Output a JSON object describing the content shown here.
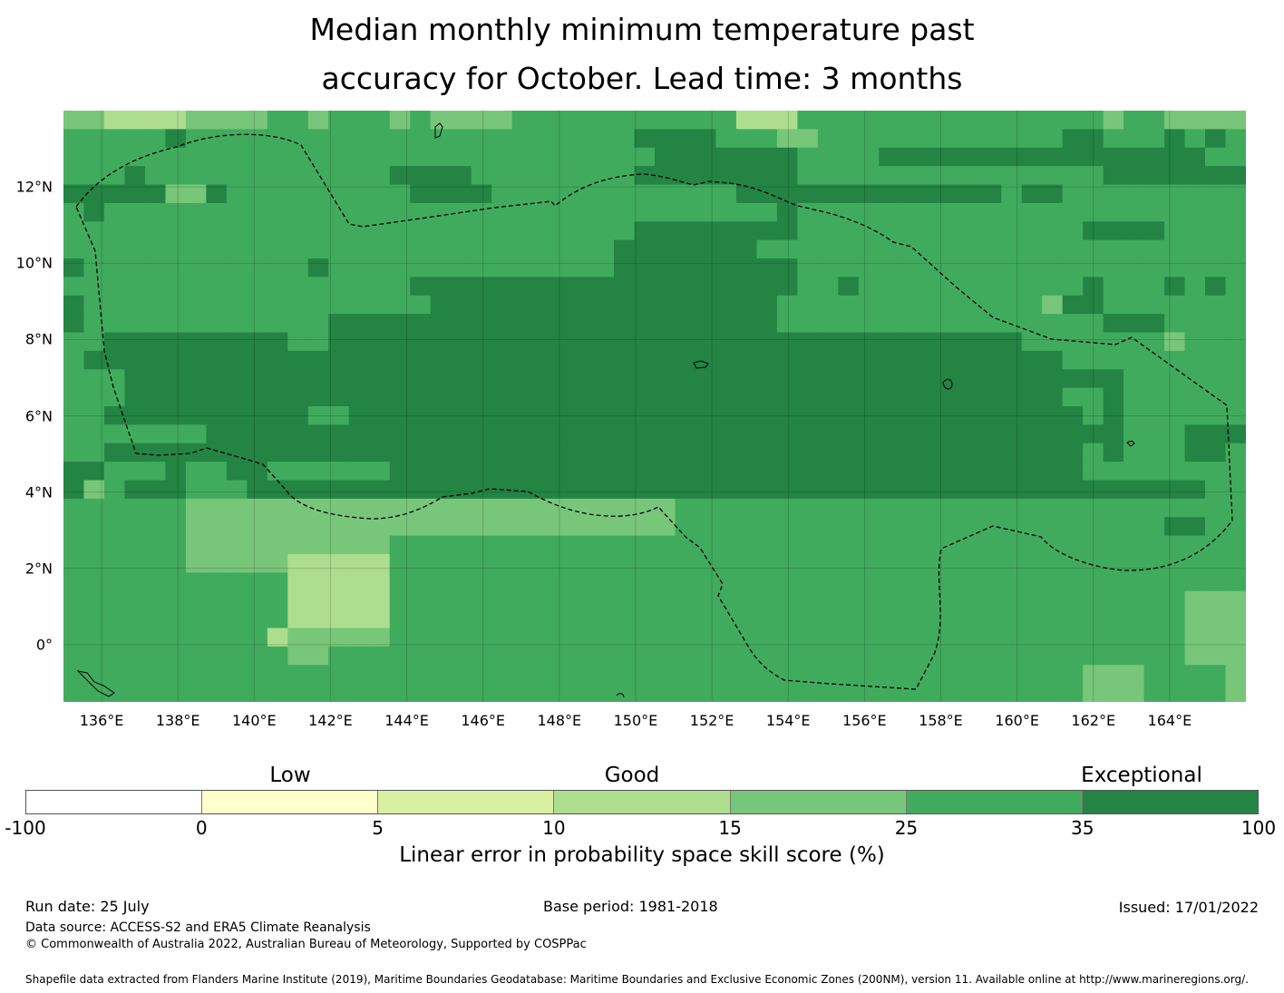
{
  "title_line1": "Median monthly minimum temperature past",
  "title_line2": "accuracy for October. Lead time: 3 months",
  "map": {
    "lon_range": [
      135.0,
      166.0
    ],
    "lat_range": [
      -1.5,
      14.0
    ],
    "lat_labels": [
      "12°N",
      "10°N",
      "8°N",
      "6°N",
      "4°N",
      "2°N",
      "0°"
    ],
    "lon_labels": [
      "136°E",
      "138°E",
      "140°E",
      "142°E",
      "144°E",
      "146°E",
      "148°E",
      "150°E",
      "152°E",
      "154°E",
      "156°E",
      "158°E",
      "160°E",
      "162°E",
      "164°E"
    ],
    "boundary_style": "dashed",
    "grid_legend": {
      "1": "#ffffcc",
      "2": "#d9f0a3",
      "3": "#addd8e",
      "4": "#78c679",
      "5": "#41ab5d",
      "6": "#238443"
    },
    "grid_rows": [
      "4433334444554555454444555555555553335555555555555554554444",
      "5555565555555555555555555555666655544555555555555665556565",
      "5555555555555555555555555555566666665555666666666666666655",
      "5556555555555555666655555555666666665555555555555556666666",
      "6666644655555555566665555555555556666666666666566555555555",
      "5655555555555555555555555555555555565555555555555555555555",
      "5555555555555555555555555555666666665555555555555566665555",
      "5555555555555555555555555556666666555555555555555555555555",
      "6555555555556555555555555556666666665555555555555555555555",
      "5555555555555555566666666666666666665565555555555565556565",
      "6555555555555555556666666666666666655555555555554665555555",
      "6555555555555666666666666666666666655555555555555556665555",
      "5566666666655666666666666666666666666666666666655555554555",
      "5666666666666666666666666666666666666666666666666555555555",
      "5556666666666666666666666666666666666666666666666666555555",
      "5556666666666666666666666666666666666666666666666556555555",
      "5566666666665566666666666666666666666666666666666656555555",
      "5555555666666666666666666666666666666666666666666666555666",
      "5566666666666666666666666666666666666666666666666656555665",
      "6655565566555555666666666666666666666666666666666655555555",
      "6456665556666666666666666666666666666666666666666666666655",
      "5555554444444444444444444444445555555555555555555555555555",
      "5555554444444444444444444444445555555555555555555555556655",
      "5555554444444444555555555555555555555555555555555555555555",
      "5555554444433333555555555555555555555555555555555555555555",
      "5555555555533333555555555555555555555555555555555555555555",
      "5555555555533333555555555555555555555555555555555555555444",
      "5555555555533333555555555555555555555555555555555555555444",
      "5555555555344444555555555555555555555555555555555555555444",
      "5555555555544555555555555555555555555555555555555555555444",
      "5555555555555555555555555555555555555555555555555544455554",
      "5555555555555555555555555555555555555555555555555544455554"
    ]
  },
  "categories": [
    "Low",
    "Good",
    "Exceptional"
  ],
  "colorbar": {
    "colors": [
      "#ffffff",
      "#ffffcc",
      "#d9f0a3",
      "#addd8e",
      "#78c679",
      "#41ab5d",
      "#238443"
    ],
    "ticks": [
      "-100",
      "0",
      "5",
      "10",
      "15",
      "25",
      "35",
      "100"
    ],
    "label": "Linear error in probability space skill score (%)"
  },
  "footer": {
    "run_date": "Run date: 25 July",
    "base_period": "Base period: 1981-2018",
    "issued": "Issued: 17/01/2022",
    "data_source": "Data source: ACCESS-S2 and ERA5 Climate Reanalysis",
    "copyright": "© Commonwealth of Australia 2022, Australian Bureau of Meteorology, Supported by COSPPac",
    "shapefile": "Shapefile data extracted from Flanders Marine Institute (2019), Maritime Boundaries Geodatabase: Maritime Boundaries and Exclusive Economic Zones (200NM), version 11. Available online at http://www.marineregions.org/."
  }
}
